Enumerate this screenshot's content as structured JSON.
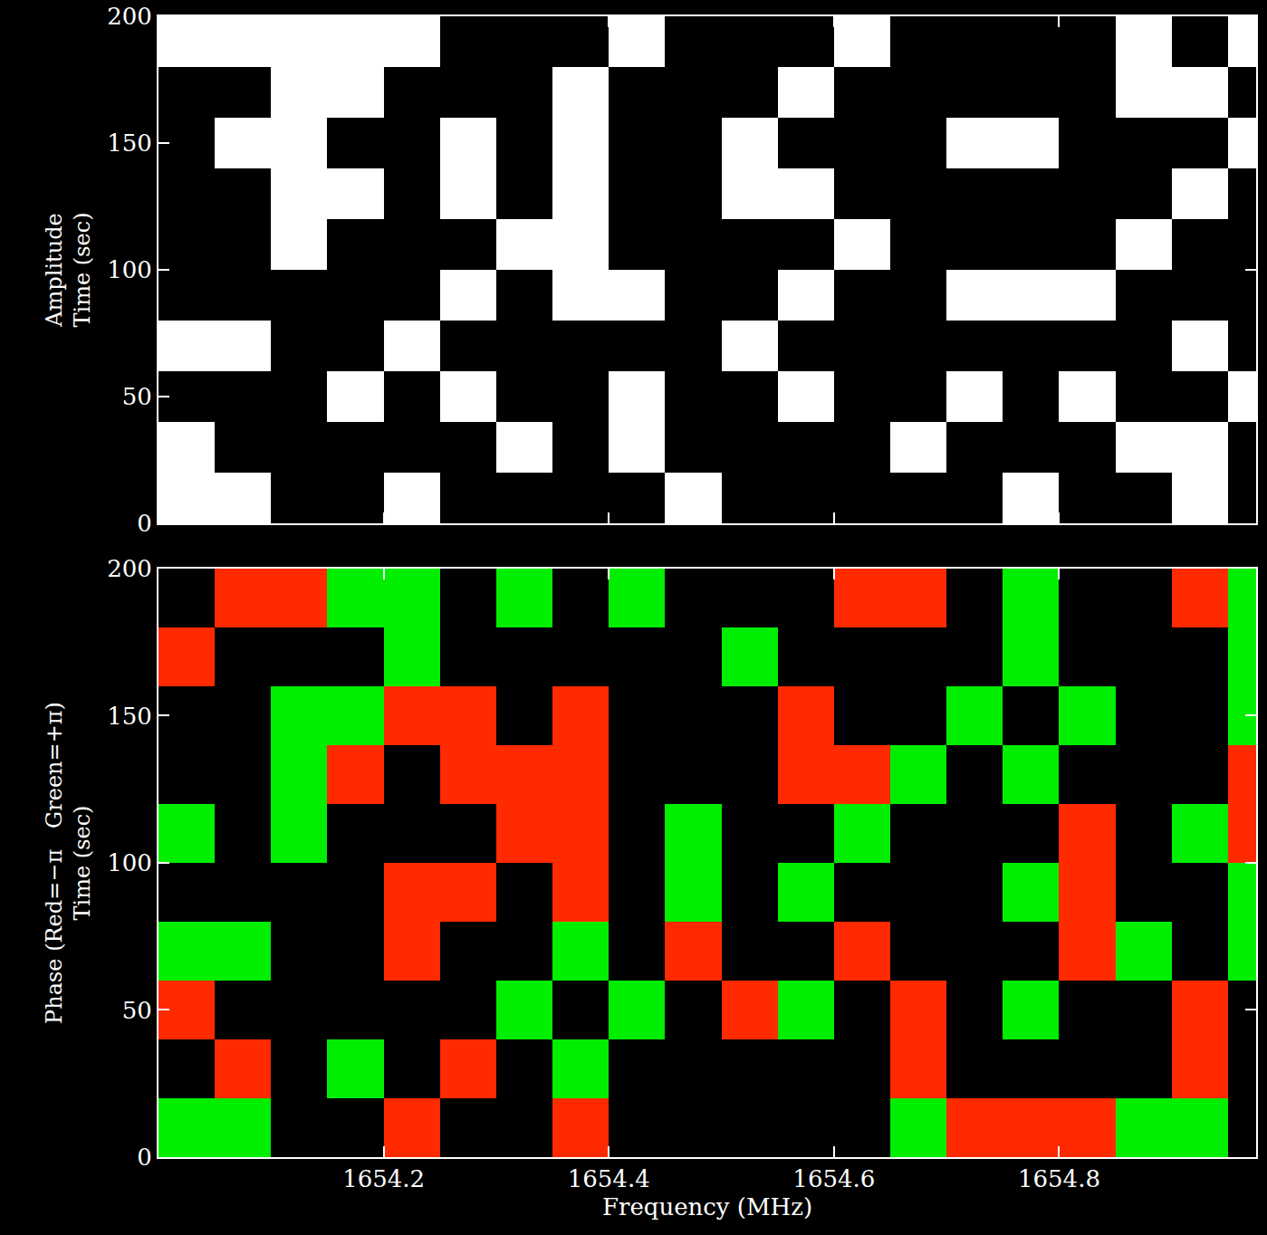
{
  "chart_data": [
    {
      "type": "heatmap",
      "ylabel": [
        "Amplitude",
        "Time (sec)"
      ],
      "x": [
        1654.0,
        1654.05,
        1654.1,
        1654.15,
        1654.2,
        1654.25,
        1654.3,
        1654.35,
        1654.4,
        1654.45,
        1654.5,
        1654.55,
        1654.6,
        1654.65,
        1654.7,
        1654.75,
        1654.8,
        1654.85,
        1654.9,
        1654.95,
        1654.975
      ],
      "y": [
        0,
        20,
        40,
        60,
        80,
        100,
        120,
        140,
        160,
        180,
        200
      ],
      "xlim": [
        1654.0,
        1654.975
      ],
      "ylim": [
        0,
        200
      ],
      "xticks": [
        1654.2,
        1654.4,
        1654.6,
        1654.8
      ],
      "yticks": [
        0,
        50,
        100,
        150,
        200
      ],
      "zlim": [
        0,
        1
      ],
      "tick_labels": "y",
      "cells": [
        [
          1,
          1,
          0,
          0,
          1,
          0,
          0,
          0,
          0,
          1,
          0,
          0,
          0,
          0,
          0,
          1,
          0,
          0,
          1,
          0
        ],
        [
          1,
          0,
          0,
          0,
          0,
          0,
          1,
          0,
          1,
          0,
          0,
          0,
          0,
          1,
          0,
          0,
          0,
          1,
          1,
          0
        ],
        [
          0,
          0,
          0,
          1,
          0,
          1,
          0,
          0,
          1,
          0,
          0,
          1,
          0,
          0,
          1,
          0,
          1,
          0,
          0,
          1
        ],
        [
          1,
          1,
          0,
          0,
          1,
          0,
          0,
          0,
          0,
          0,
          1,
          0,
          0,
          0,
          0,
          0,
          0,
          0,
          1,
          0
        ],
        [
          0,
          0,
          0,
          0,
          0,
          1,
          0,
          1,
          1,
          0,
          0,
          1,
          0,
          0,
          1,
          1,
          1,
          0,
          0,
          0
        ],
        [
          0,
          0,
          1,
          0,
          0,
          0,
          1,
          1,
          0,
          0,
          0,
          0,
          1,
          0,
          0,
          0,
          0,
          1,
          0,
          0
        ],
        [
          0,
          0,
          1,
          1,
          0,
          1,
          0,
          1,
          0,
          0,
          1,
          1,
          0,
          0,
          0,
          0,
          0,
          0,
          1,
          0
        ],
        [
          0,
          1,
          1,
          0,
          0,
          1,
          0,
          1,
          0,
          0,
          1,
          0,
          0,
          0,
          1,
          1,
          0,
          0,
          0,
          1
        ],
        [
          0,
          0,
          1,
          1,
          0,
          0,
          0,
          1,
          0,
          0,
          0,
          1,
          0,
          0,
          0,
          0,
          0,
          1,
          1,
          0
        ],
        [
          1,
          1,
          1,
          1,
          1,
          0,
          0,
          0,
          1,
          0,
          0,
          0,
          1,
          0,
          0,
          0,
          0,
          1,
          0,
          1
        ]
      ]
    },
    {
      "type": "heatmap",
      "ylabel": [
        "Phase (Red=−π   Green=+π)",
        "Time (sec)"
      ],
      "xlabel": "Frequency (MHz)",
      "x": [
        1654.0,
        1654.05,
        1654.1,
        1654.15,
        1654.2,
        1654.25,
        1654.3,
        1654.35,
        1654.4,
        1654.45,
        1654.5,
        1654.55,
        1654.6,
        1654.65,
        1654.7,
        1654.75,
        1654.8,
        1654.85,
        1654.9,
        1654.95,
        1654.975
      ],
      "y": [
        0,
        20,
        40,
        60,
        80,
        100,
        120,
        140,
        160,
        180,
        200
      ],
      "xlim": [
        1654.0,
        1654.975
      ],
      "ylim": [
        0,
        200
      ],
      "xticks": [
        1654.2,
        1654.4,
        1654.6,
        1654.8
      ],
      "yticks": [
        0,
        50,
        100,
        150,
        200
      ],
      "zlim": [
        -3.14,
        3.14
      ],
      "cells": [
        [
          3.14,
          3.14,
          0,
          0,
          -3.14,
          0,
          0,
          -3.14,
          0,
          0,
          0,
          0,
          0,
          3.14,
          -3.14,
          -3.14,
          -3.14,
          3.14,
          3.14,
          0
        ],
        [
          0,
          -3.14,
          0,
          3.14,
          0,
          -3.14,
          0,
          3.14,
          0,
          0,
          0,
          0,
          0,
          -3.14,
          0,
          0,
          0,
          0,
          -3.14,
          0
        ],
        [
          -3.14,
          0,
          0,
          0,
          0,
          0,
          3.14,
          0,
          3.14,
          0,
          -3.14,
          3.14,
          0,
          -3.14,
          0,
          3.14,
          0,
          0,
          -3.14,
          0
        ],
        [
          3.14,
          3.14,
          0,
          0,
          -3.14,
          0,
          0,
          3.14,
          0,
          -3.14,
          0,
          0,
          -3.14,
          0,
          0,
          0,
          -3.14,
          3.14,
          0,
          3.14
        ],
        [
          0,
          0,
          0,
          0,
          -3.14,
          -3.14,
          0,
          -3.14,
          0,
          3.14,
          0,
          3.14,
          0,
          0,
          0,
          3.14,
          -3.14,
          0,
          0,
          3.14
        ],
        [
          3.14,
          0,
          3.14,
          0,
          0,
          0,
          -3.14,
          -3.14,
          0,
          3.14,
          0,
          0,
          3.14,
          0,
          0,
          0,
          -3.14,
          0,
          3.14,
          -3.14
        ],
        [
          0,
          0,
          3.14,
          -3.14,
          0,
          -3.14,
          -3.14,
          -3.14,
          0,
          0,
          0,
          -3.14,
          -3.14,
          3.14,
          0,
          3.14,
          0,
          0,
          0,
          -3.14
        ],
        [
          0,
          0,
          3.14,
          3.14,
          -3.14,
          -3.14,
          0,
          -3.14,
          0,
          0,
          0,
          -3.14,
          0,
          0,
          3.14,
          0,
          3.14,
          0,
          0,
          3.14
        ],
        [
          -3.14,
          0,
          0,
          0,
          3.14,
          0,
          0,
          0,
          0,
          0,
          3.14,
          0,
          0,
          0,
          0,
          3.14,
          0,
          0,
          0,
          3.14
        ],
        [
          0,
          -3.14,
          -3.14,
          3.14,
          3.14,
          0,
          3.14,
          0,
          3.14,
          0,
          0,
          0,
          -3.14,
          -3.14,
          0,
          3.14,
          0,
          0,
          -3.14,
          3.14
        ]
      ]
    }
  ]
}
